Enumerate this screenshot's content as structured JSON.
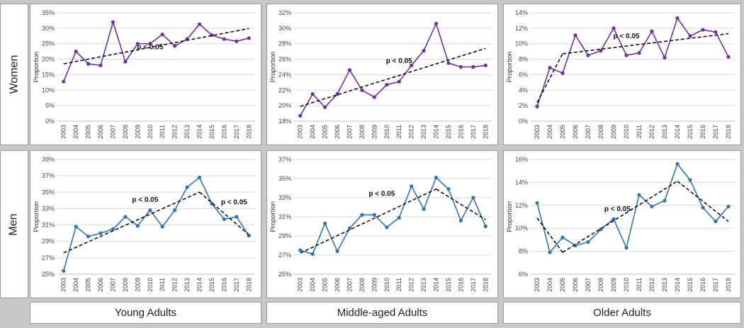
{
  "rows": [
    "Women",
    "Men"
  ],
  "columns": [
    "Young Adults",
    "Middle-aged Adults",
    "Older Adults"
  ],
  "colors": {
    "women": "#7030a0",
    "men": "#2e75b6",
    "trend": "#111111"
  },
  "chart_data": [
    {
      "id": "women-young",
      "type": "line",
      "row": "Women",
      "column": "Young Adults",
      "ylabel": "Proportion",
      "categories": [
        "2003",
        "2004",
        "2005",
        "2006",
        "2007",
        "2008",
        "2009",
        "2010",
        "2011",
        "2012",
        "2013",
        "2014",
        "2015",
        "2016",
        "2017",
        "2018"
      ],
      "values": [
        12.8,
        22.5,
        18.5,
        18.0,
        32.0,
        19.2,
        25.0,
        25.0,
        28.0,
        24.3,
        26.5,
        31.3,
        27.8,
        26.5,
        25.8,
        26.8
      ],
      "ylim": [
        0,
        35
      ],
      "yticks": [
        0,
        5,
        10,
        15,
        20,
        25,
        30,
        35
      ],
      "trend": {
        "segments": [
          {
            "from": "2003",
            "to": "2018",
            "y0": 18.5,
            "y1": 29.9
          }
        ]
      },
      "annotations": [
        {
          "text": "p < 0.05",
          "x": "2010",
          "y": 23.2
        }
      ]
    },
    {
      "id": "women-middle",
      "type": "line",
      "row": "Women",
      "column": "Middle-aged Adults",
      "ylabel": "Proportion",
      "categories": [
        "2003",
        "2004",
        "2005",
        "2006",
        "2007",
        "2008",
        "2009",
        "2010",
        "2011",
        "2012",
        "2013",
        "2014",
        "2015",
        "2016",
        "2017",
        "2018"
      ],
      "values": [
        18.7,
        21.5,
        19.8,
        21.5,
        24.6,
        22.0,
        21.1,
        22.7,
        23.1,
        25.2,
        27.1,
        30.6,
        25.5,
        25.0,
        25.0,
        25.2
      ],
      "ylim": [
        18,
        32
      ],
      "yticks": [
        18,
        20,
        22,
        24,
        26,
        28,
        30,
        32
      ],
      "trend": {
        "segments": [
          {
            "from": "2003",
            "to": "2018",
            "y0": 19.9,
            "y1": 27.4
          }
        ]
      },
      "annotations": [
        {
          "text": "p < 0.05",
          "x": "2011",
          "y": 25.5
        }
      ]
    },
    {
      "id": "women-older",
      "type": "line",
      "row": "Women",
      "column": "Older Adults",
      "ylabel": "Proportion",
      "categories": [
        "2003",
        "2004",
        "2005",
        "2006",
        "2007",
        "2008",
        "2009",
        "2010",
        "2011",
        "2012",
        "2013",
        "2014",
        "2015",
        "2016",
        "2017",
        "2018"
      ],
      "values": [
        1.9,
        6.9,
        6.2,
        11.1,
        8.5,
        9.1,
        12.0,
        8.5,
        8.8,
        11.6,
        8.2,
        13.3,
        11.0,
        11.8,
        11.5,
        8.3
      ],
      "ylim": [
        0,
        14
      ],
      "yticks": [
        0,
        2,
        4,
        6,
        8,
        10,
        12,
        14
      ],
      "trend": {
        "segments": [
          {
            "from": "2003",
            "to": "2005",
            "y0": 2.4,
            "y1": 8.7
          },
          {
            "from": "2005",
            "to": "2018",
            "y0": 8.7,
            "y1": 11.3
          }
        ]
      },
      "annotations": [
        {
          "text": "p < 0.05",
          "x": "2010",
          "y": 10.7
        }
      ]
    },
    {
      "id": "men-young",
      "type": "line",
      "row": "Men",
      "column": "Young Adults",
      "ylabel": "Proportion",
      "categories": [
        "2003",
        "2004",
        "2005",
        "2006",
        "2007",
        "2008",
        "2009",
        "2010",
        "2011",
        "2012",
        "2013",
        "2014",
        "2015",
        "2016",
        "2017",
        "2018"
      ],
      "values": [
        25.4,
        30.8,
        29.6,
        30.0,
        30.5,
        32.0,
        30.9,
        32.8,
        30.8,
        32.8,
        35.6,
        36.8,
        33.6,
        31.7,
        32.0,
        29.7
      ],
      "ylim": [
        25,
        39
      ],
      "yticks": [
        25,
        27,
        29,
        31,
        33,
        35,
        37,
        39
      ],
      "trend": {
        "segments": [
          {
            "from": "2003",
            "to": "2014",
            "y0": 27.6,
            "y1": 35.0
          },
          {
            "from": "2014",
            "to": "2018",
            "y0": 35.0,
            "y1": 29.8
          }
        ]
      },
      "annotations": [
        {
          "text": "p < 0.05",
          "x": "2009.6",
          "y": 33.8
        },
        {
          "text": "p < 0.05",
          "x": "2016.8",
          "y": 33.5
        }
      ]
    },
    {
      "id": "men-middle",
      "type": "line",
      "row": "Men",
      "column": "Middle-aged Adults",
      "ylabel": "Proportion",
      "categories": [
        "2003",
        "2004",
        "2005",
        "2006",
        "2007",
        "2008",
        "2009",
        "2010",
        "2011",
        "2012",
        "2013",
        "2014",
        "2015",
        "2016",
        "2017",
        "2018"
      ],
      "values": [
        27.5,
        27.1,
        30.3,
        27.4,
        29.8,
        31.2,
        31.2,
        29.9,
        30.9,
        34.2,
        31.8,
        35.1,
        33.9,
        30.6,
        33.0,
        30.0
      ],
      "ylim": [
        25,
        37
      ],
      "yticks": [
        25,
        27,
        29,
        31,
        33,
        35,
        37
      ],
      "trend": {
        "segments": [
          {
            "from": "2003",
            "to": "2014",
            "y0": 27.2,
            "y1": 33.9
          },
          {
            "from": "2014",
            "to": "2018",
            "y0": 33.9,
            "y1": 30.7
          }
        ]
      },
      "annotations": [
        {
          "text": "p < 0.05",
          "x": "2009.6",
          "y": 33.2
        }
      ]
    },
    {
      "id": "men-older",
      "type": "line",
      "row": "Men",
      "column": "Older Adults",
      "ylabel": "Proportion",
      "categories": [
        "2003",
        "2004",
        "2005",
        "2006",
        "2007",
        "2008",
        "2009",
        "2010",
        "2011",
        "2012",
        "2013",
        "2014",
        "2015",
        "2016",
        "2017",
        "2018"
      ],
      "values": [
        12.2,
        7.9,
        9.2,
        8.5,
        8.8,
        9.9,
        10.8,
        8.3,
        12.9,
        11.9,
        12.4,
        15.6,
        14.2,
        11.8,
        10.6,
        11.9
      ],
      "ylim": [
        6,
        16
      ],
      "yticks": [
        6,
        8,
        10,
        12,
        14,
        16
      ],
      "trend": {
        "segments": [
          {
            "from": "2003",
            "to": "2005",
            "y0": 10.9,
            "y1": 7.9
          },
          {
            "from": "2005",
            "to": "2014",
            "y0": 7.9,
            "y1": 14.1
          },
          {
            "from": "2014",
            "to": "2018",
            "y0": 14.1,
            "y1": 10.6
          }
        ]
      },
      "annotations": [
        {
          "text": "p < 0.05",
          "x": "2009.3",
          "y": 11.5
        }
      ]
    }
  ]
}
